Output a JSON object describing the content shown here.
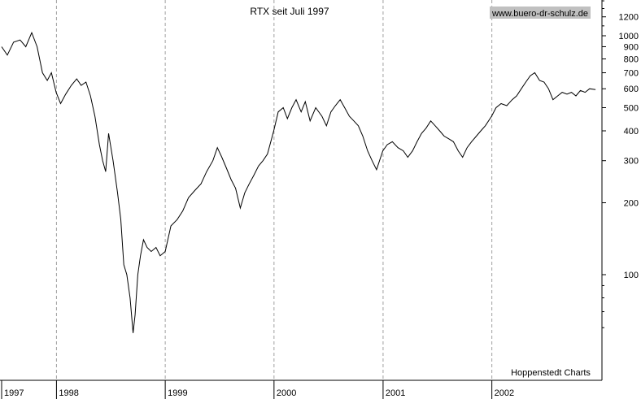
{
  "chart_data": {
    "type": "line",
    "title": "RTX seit Juli 1997",
    "watermark": "www.buero-dr-schulz.de",
    "source": "Hoppenstedt Charts",
    "x_labels": [
      "1997",
      "1998",
      "1999",
      "2000",
      "2001",
      "2002"
    ],
    "y_scale": "log",
    "y_ticks": [
      100,
      200,
      300,
      400,
      500,
      600,
      700,
      800,
      900,
      1000,
      1200
    ],
    "y_tick_labels": [
      "100",
      "200",
      "300",
      "400",
      "500",
      "600",
      "700",
      "800",
      "900",
      "1000",
      "1200"
    ],
    "x_range": [
      "1997-07-01",
      "2002-12-31"
    ],
    "grid": "vertical dashed at year boundaries",
    "series": [
      {
        "points": [
          [
            "1997-07-01",
            900
          ],
          [
            "1997-07-20",
            830
          ],
          [
            "1997-08-10",
            940
          ],
          [
            "1997-09-01",
            960
          ],
          [
            "1997-09-20",
            900
          ],
          [
            "1997-10-10",
            1030
          ],
          [
            "1997-10-28",
            900
          ],
          [
            "1997-11-15",
            700
          ],
          [
            "1997-12-01",
            650
          ],
          [
            "1997-12-15",
            700
          ],
          [
            "1997-12-31",
            580
          ],
          [
            "1998-01-15",
            520
          ],
          [
            "1998-02-01",
            570
          ],
          [
            "1998-02-20",
            620
          ],
          [
            "1998-03-10",
            660
          ],
          [
            "1998-03-25",
            620
          ],
          [
            "1998-04-10",
            640
          ],
          [
            "1998-04-25",
            560
          ],
          [
            "1998-05-10",
            460
          ],
          [
            "1998-05-25",
            350
          ],
          [
            "1998-06-05",
            300
          ],
          [
            "1998-06-15",
            270
          ],
          [
            "1998-06-25",
            390
          ],
          [
            "1998-07-10",
            300
          ],
          [
            "1998-07-25",
            220
          ],
          [
            "1998-08-05",
            170
          ],
          [
            "1998-08-15",
            110
          ],
          [
            "1998-08-25",
            100
          ],
          [
            "1998-09-05",
            80
          ],
          [
            "1998-09-15",
            57
          ],
          [
            "1998-09-22",
            68
          ],
          [
            "1998-10-01",
            100
          ],
          [
            "1998-10-10",
            120
          ],
          [
            "1998-10-20",
            140
          ],
          [
            "1998-11-01",
            130
          ],
          [
            "1998-11-15",
            125
          ],
          [
            "1998-12-01",
            130
          ],
          [
            "1998-12-15",
            120
          ],
          [
            "1999-01-01",
            125
          ],
          [
            "1999-01-20",
            160
          ],
          [
            "1999-02-10",
            170
          ],
          [
            "1999-03-01",
            185
          ],
          [
            "1999-03-20",
            210
          ],
          [
            "1999-04-10",
            225
          ],
          [
            "1999-05-01",
            240
          ],
          [
            "1999-05-20",
            270
          ],
          [
            "1999-06-10",
            300
          ],
          [
            "1999-06-25",
            340
          ],
          [
            "1999-07-10",
            310
          ],
          [
            "1999-07-25",
            280
          ],
          [
            "1999-08-10",
            250
          ],
          [
            "1999-08-25",
            230
          ],
          [
            "1999-09-10",
            190
          ],
          [
            "1999-09-25",
            220
          ],
          [
            "1999-10-10",
            240
          ],
          [
            "1999-10-25",
            260
          ],
          [
            "1999-11-10",
            285
          ],
          [
            "1999-11-25",
            300
          ],
          [
            "1999-12-10",
            320
          ],
          [
            "1999-12-31",
            400
          ],
          [
            "2000-01-15",
            480
          ],
          [
            "2000-02-01",
            500
          ],
          [
            "2000-02-15",
            450
          ],
          [
            "2000-03-01",
            500
          ],
          [
            "2000-03-15",
            540
          ],
          [
            "2000-04-01",
            480
          ],
          [
            "2000-04-15",
            530
          ],
          [
            "2000-05-01",
            440
          ],
          [
            "2000-05-20",
            500
          ],
          [
            "2000-06-10",
            460
          ],
          [
            "2000-06-25",
            420
          ],
          [
            "2000-07-10",
            480
          ],
          [
            "2000-07-25",
            510
          ],
          [
            "2000-08-10",
            540
          ],
          [
            "2000-08-25",
            500
          ],
          [
            "2000-09-10",
            460
          ],
          [
            "2000-09-25",
            440
          ],
          [
            "2000-10-10",
            420
          ],
          [
            "2000-10-25",
            380
          ],
          [
            "2000-11-10",
            330
          ],
          [
            "2000-11-25",
            300
          ],
          [
            "2000-12-10",
            275
          ],
          [
            "2000-12-31",
            330
          ],
          [
            "2001-01-15",
            350
          ],
          [
            "2001-02-01",
            360
          ],
          [
            "2001-02-20",
            340
          ],
          [
            "2001-03-10",
            330
          ],
          [
            "2001-03-25",
            310
          ],
          [
            "2001-04-10",
            330
          ],
          [
            "2001-04-25",
            360
          ],
          [
            "2001-05-10",
            390
          ],
          [
            "2001-05-25",
            410
          ],
          [
            "2001-06-10",
            440
          ],
          [
            "2001-06-25",
            420
          ],
          [
            "2001-07-10",
            400
          ],
          [
            "2001-07-25",
            380
          ],
          [
            "2001-08-10",
            370
          ],
          [
            "2001-08-25",
            360
          ],
          [
            "2001-09-10",
            330
          ],
          [
            "2001-09-25",
            310
          ],
          [
            "2001-10-10",
            340
          ],
          [
            "2001-10-25",
            360
          ],
          [
            "2001-11-10",
            380
          ],
          [
            "2001-11-25",
            400
          ],
          [
            "2001-12-10",
            420
          ],
          [
            "2001-12-31",
            460
          ],
          [
            "2002-01-15",
            500
          ],
          [
            "2002-02-01",
            520
          ],
          [
            "2002-02-20",
            510
          ],
          [
            "2002-03-10",
            540
          ],
          [
            "2002-03-25",
            560
          ],
          [
            "2002-04-10",
            600
          ],
          [
            "2002-04-25",
            640
          ],
          [
            "2002-05-10",
            680
          ],
          [
            "2002-05-25",
            700
          ],
          [
            "2002-06-10",
            650
          ],
          [
            "2002-06-25",
            640
          ],
          [
            "2002-07-10",
            600
          ],
          [
            "2002-07-25",
            540
          ],
          [
            "2002-08-10",
            560
          ],
          [
            "2002-08-25",
            580
          ],
          [
            "2002-09-10",
            570
          ],
          [
            "2002-09-25",
            580
          ],
          [
            "2002-10-10",
            560
          ],
          [
            "2002-10-25",
            590
          ],
          [
            "2002-11-10",
            580
          ],
          [
            "2002-11-25",
            600
          ],
          [
            "2002-12-15",
            595
          ]
        ]
      }
    ]
  }
}
